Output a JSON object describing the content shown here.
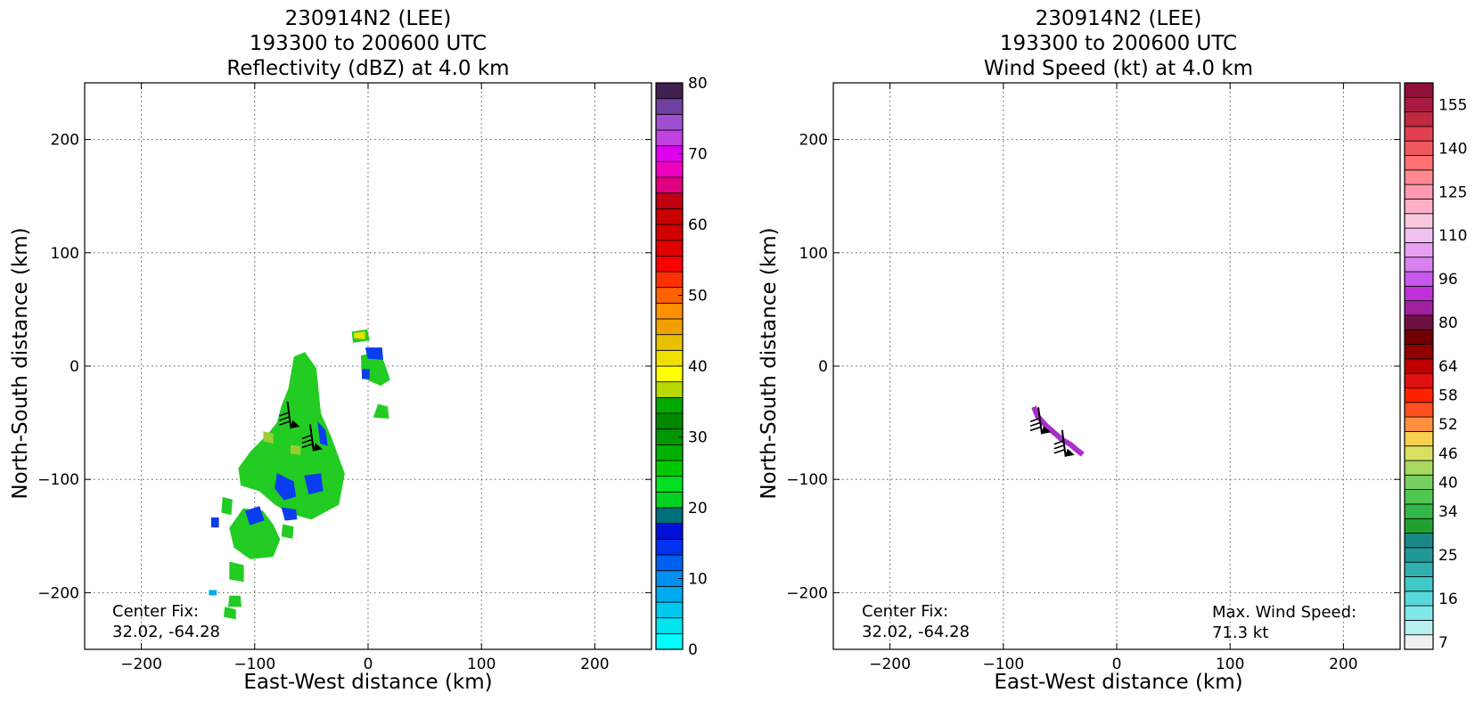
{
  "chart_data": [
    {
      "type": "heatmap",
      "title_lines": [
        "230914N2 (LEE)",
        "193300 to 200600 UTC",
        "Reflectivity (dBZ) at 4.0 km"
      ],
      "xlabel": "East-West distance (km)",
      "ylabel": "North-South distance (km)",
      "xlim": [
        -250,
        250
      ],
      "ylim": [
        -250,
        250
      ],
      "xticks": [
        -200,
        -100,
        0,
        100,
        200
      ],
      "yticks": [
        -200,
        -100,
        0,
        100,
        200
      ],
      "grid": true,
      "center_fix_label": "Center Fix:",
      "center_fix_value": "32.02, -64.28",
      "colorbar": {
        "min": 0,
        "max": 80,
        "step": 2.5,
        "tick_labels": [
          "0",
          "10",
          "20",
          "30",
          "40",
          "50",
          "60",
          "70",
          "80"
        ],
        "colors": [
          "#00ffff",
          "#00e4f0",
          "#00c8ef",
          "#00aaf0",
          "#0090f0",
          "#0060f0",
          "#0030f0",
          "#0010d8",
          "#00707a",
          "#00d020",
          "#00e020",
          "#00c800",
          "#00b000",
          "#009800",
          "#008800",
          "#00a800",
          "#b8d800",
          "#ffff00",
          "#f0e000",
          "#e8c000",
          "#f0a000",
          "#ff9000",
          "#ff6000",
          "#ff3000",
          "#ff0000",
          "#e00000",
          "#d00000",
          "#c80000",
          "#c00010",
          "#e00080",
          "#f000c0",
          "#e000f0",
          "#c040e0",
          "#a050d0",
          "#7040a0",
          "#402050"
        ]
      },
      "series": [
        {
          "role": "echo_region",
          "level_dbz": 25,
          "color": "#22cc22",
          "polygon": [
            [
              -65,
              8
            ],
            [
              -56,
              12
            ],
            [
              -46,
              -2
            ],
            [
              -42,
              -42
            ],
            [
              -33,
              -62
            ],
            [
              -21,
              -95
            ],
            [
              -26,
              -122
            ],
            [
              -50,
              -135
            ],
            [
              -68,
              -130
            ],
            [
              -82,
              -122
            ],
            [
              -96,
              -110
            ],
            [
              -112,
              -105
            ],
            [
              -114,
              -90
            ],
            [
              -103,
              -75
            ],
            [
              -88,
              -60
            ],
            [
              -80,
              -50
            ],
            [
              -76,
              -35
            ],
            [
              -70,
              -20
            ]
          ]
        },
        {
          "role": "echo_region",
          "level_dbz": 25,
          "color": "#22cc22",
          "polygon": [
            [
              -110,
              -126
            ],
            [
              -93,
              -128
            ],
            [
              -84,
              -140
            ],
            [
              -78,
              -153
            ],
            [
              -84,
              -168
            ],
            [
              -104,
              -170
            ],
            [
              -118,
              -160
            ],
            [
              -122,
              -143
            ]
          ]
        },
        {
          "role": "echo_region",
          "level_dbz": 25,
          "color": "#22cc22",
          "polygon": [
            [
              -14,
              30
            ],
            [
              -1,
              32
            ],
            [
              1,
              23
            ],
            [
              -13,
              21
            ]
          ]
        },
        {
          "role": "echo_region",
          "level_dbz": 25,
          "color": "#22cc22",
          "polygon": [
            [
              -6,
              9
            ],
            [
              9,
              13
            ],
            [
              14,
              3
            ],
            [
              19,
              -12
            ],
            [
              11,
              -17
            ],
            [
              -5,
              -10
            ]
          ]
        },
        {
          "role": "echo_region",
          "level_dbz": 25,
          "color": "#22cc22",
          "polygon": [
            [
              9,
              -34
            ],
            [
              17,
              -36
            ],
            [
              18,
              -46
            ],
            [
              5,
              -45
            ]
          ]
        },
        {
          "role": "echo_region",
          "level_dbz": 25,
          "color": "#22cc22",
          "polygon": [
            [
              -128,
              -116
            ],
            [
              -120,
              -118
            ],
            [
              -121,
              -131
            ],
            [
              -129,
              -129
            ]
          ]
        },
        {
          "role": "echo_region",
          "level_dbz": 25,
          "color": "#22cc22",
          "polygon": [
            [
              -75,
              -140
            ],
            [
              -66,
              -142
            ],
            [
              -67,
              -152
            ],
            [
              -76,
              -150
            ]
          ]
        },
        {
          "role": "echo_region",
          "level_dbz": 25,
          "color": "#22cc22",
          "polygon": [
            [
              -122,
              -173
            ],
            [
              -110,
              -176
            ],
            [
              -110,
              -190
            ],
            [
              -122,
              -188
            ]
          ]
        },
        {
          "role": "echo_region",
          "level_dbz": 25,
          "color": "#22cc22",
          "polygon": [
            [
              -122,
              -203
            ],
            [
              -113,
              -203
            ],
            [
              -112,
              -212
            ],
            [
              -123,
              -212
            ]
          ]
        },
        {
          "role": "echo_region",
          "level_dbz": 25,
          "color": "#22cc22",
          "polygon": [
            [
              -126,
              -213
            ],
            [
              -117,
              -215
            ],
            [
              -117,
              -223
            ],
            [
              -127,
              -221
            ]
          ]
        },
        {
          "role": "echo_region",
          "level_dbz": 10,
          "color": "#0a3cf0",
          "polygon": [
            [
              -44,
              -50
            ],
            [
              -38,
              -57
            ],
            [
              -36,
              -70
            ],
            [
              -42,
              -68
            ]
          ]
        },
        {
          "role": "echo_region",
          "level_dbz": 10,
          "color": "#0a3cf0",
          "polygon": [
            [
              -80,
              -95
            ],
            [
              -66,
              -102
            ],
            [
              -64,
              -115
            ],
            [
              -74,
              -118
            ],
            [
              -82,
              -108
            ]
          ]
        },
        {
          "role": "echo_region",
          "level_dbz": 10,
          "color": "#0a3cf0",
          "polygon": [
            [
              -56,
              -97
            ],
            [
              -42,
              -95
            ],
            [
              -40,
              -110
            ],
            [
              -52,
              -113
            ]
          ]
        },
        {
          "role": "echo_region",
          "level_dbz": 10,
          "color": "#0a3cf0",
          "polygon": [
            [
              -108,
              -128
            ],
            [
              -96,
              -124
            ],
            [
              -92,
              -136
            ],
            [
              -104,
              -140
            ]
          ]
        },
        {
          "role": "echo_region",
          "level_dbz": 10,
          "color": "#0a3cf0",
          "polygon": [
            [
              -76,
              -125
            ],
            [
              -64,
              -127
            ],
            [
              -63,
              -135
            ],
            [
              -73,
              -136
            ]
          ]
        },
        {
          "role": "echo_region",
          "level_dbz": 10,
          "color": "#0a3cf0",
          "polygon": [
            [
              -2,
              16
            ],
            [
              12,
              16
            ],
            [
              13,
              6
            ],
            [
              0,
              7
            ]
          ]
        },
        {
          "role": "echo_region",
          "level_dbz": 10,
          "color": "#0a3cf0",
          "polygon": [
            [
              -5,
              -3
            ],
            [
              1,
              -3
            ],
            [
              1,
              -11
            ],
            [
              -5,
              -11
            ]
          ]
        },
        {
          "role": "echo_region",
          "level_dbz": 10,
          "color": "#0a3cf0",
          "polygon": [
            [
              -138,
              -134
            ],
            [
              -132,
              -134
            ],
            [
              -132,
              -142
            ],
            [
              -138,
              -142
            ]
          ]
        },
        {
          "role": "echo_region",
          "level_dbz": 10,
          "color": "#00a8f0",
          "polygon": [
            [
              -140,
              -198
            ],
            [
              -134,
              -198
            ],
            [
              -134,
              -202
            ],
            [
              -140,
              -202
            ]
          ]
        },
        {
          "role": "echo_region",
          "level_dbz": 35,
          "color": "#e8e000",
          "polygon": [
            [
              -12,
              29
            ],
            [
              -3,
              30
            ],
            [
              -3,
              24
            ],
            [
              -12,
              25
            ]
          ]
        },
        {
          "role": "echo_region",
          "level_dbz": 30,
          "color": "#9acd32",
          "polygon": [
            [
              -92,
              -58
            ],
            [
              -84,
              -60
            ],
            [
              -84,
              -68
            ],
            [
              -92,
              -66
            ]
          ]
        },
        {
          "role": "echo_region",
          "level_dbz": 30,
          "color": "#9acd32",
          "polygon": [
            [
              -68,
              -70
            ],
            [
              -60,
              -71
            ],
            [
              -60,
              -78
            ],
            [
              -68,
              -77
            ]
          ]
        },
        {
          "role": "wind_barb",
          "x": -68,
          "y": -55
        },
        {
          "role": "wind_barb",
          "x": -48,
          "y": -75
        }
      ]
    },
    {
      "type": "heatmap",
      "title_lines": [
        "230914N2 (LEE)",
        "193300 to 200600 UTC",
        "Wind Speed (kt) at 4.0 km"
      ],
      "xlabel": "East-West distance (km)",
      "ylabel": "North-South distance (km)",
      "xlim": [
        -250,
        250
      ],
      "ylim": [
        -250,
        250
      ],
      "xticks": [
        -200,
        -100,
        0,
        100,
        200
      ],
      "yticks": [
        -200,
        -100,
        0,
        100,
        200
      ],
      "grid": true,
      "center_fix_label": "Center Fix:",
      "center_fix_value": "32.02, -64.28",
      "max_wind_label": "Max. Wind Speed:",
      "max_wind_value": "71.3 kt",
      "colorbar": {
        "tick_labels": [
          "7",
          "16",
          "25",
          "34",
          "40",
          "46",
          "52",
          "58",
          "64",
          "80",
          "96",
          "110",
          "125",
          "140",
          "155"
        ],
        "tick_band_index": [
          0,
          3,
          6,
          9,
          11,
          13,
          15,
          17,
          19,
          22,
          25,
          28,
          31,
          34,
          37
        ],
        "colors": [
          "#f0f0f0",
          "#b8f0f0",
          "#80e8e8",
          "#58d8d8",
          "#40c8c8",
          "#30b0b0",
          "#209898",
          "#188888",
          "#20a030",
          "#30b848",
          "#50c850",
          "#78d060",
          "#a8d860",
          "#d8e060",
          "#f8d050",
          "#ff9040",
          "#ff5020",
          "#ff2000",
          "#e01010",
          "#c00000",
          "#900000",
          "#700000",
          "#701040",
          "#a020a0",
          "#c030d8",
          "#c858f0",
          "#d880f0",
          "#e8a0f0",
          "#f0c0f0",
          "#f8c8e0",
          "#ffb0c8",
          "#ff98b0",
          "#ff8890",
          "#ff7070",
          "#f05860",
          "#e04050",
          "#c02840",
          "#a81840",
          "#901038"
        ]
      },
      "series": [
        {
          "role": "wind_swath",
          "color": "#a830c8",
          "path": [
            [
              -73,
              -36
            ],
            [
              -70,
              -44
            ],
            [
              -63,
              -52
            ],
            [
              -55,
              -59
            ],
            [
              -48,
              -65
            ],
            [
              -41,
              -69
            ],
            [
              -34,
              -75
            ],
            [
              -30,
              -78
            ]
          ]
        },
        {
          "role": "wind_barb",
          "x": -66,
          "y": -60
        },
        {
          "role": "wind_barb",
          "x": -45,
          "y": -80
        }
      ]
    }
  ]
}
